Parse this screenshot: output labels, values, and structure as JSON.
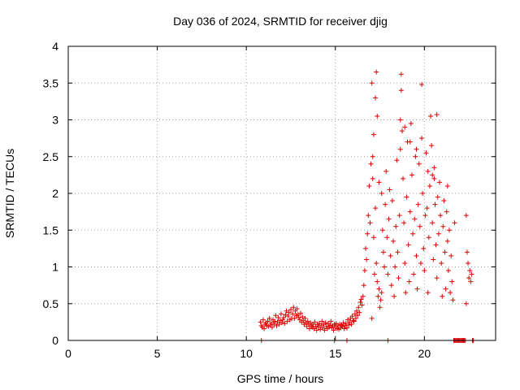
{
  "chart_data": {
    "type": "scatter",
    "title": "Day 036 of 2024, SRMTID for receiver djig",
    "xlabel": "GPS time / hours",
    "ylabel": "SRMTID / TECUs",
    "xlim": [
      0,
      24
    ],
    "ylim": [
      0,
      4
    ],
    "xticks": [
      0,
      5,
      10,
      15,
      20
    ],
    "yticks": [
      0,
      0.5,
      1,
      1.5,
      2,
      2.5,
      3,
      3.5,
      4
    ],
    "xtick_labels": [
      "0",
      "5",
      "10",
      "15",
      "20"
    ],
    "ytick_labels": [
      "0",
      "0.5",
      "1",
      "1.5",
      "2",
      "2.5",
      "3",
      "3.5",
      "4"
    ],
    "grid": true,
    "marker": "+",
    "color": "#dd0000",
    "series": [
      {
        "name": "SRMTID",
        "x": [
          10.8,
          10.85,
          10.9,
          10.95,
          11.0,
          11.05,
          11.1,
          11.15,
          11.2,
          11.25,
          11.3,
          11.35,
          11.4,
          11.45,
          11.5,
          11.55,
          11.6,
          11.65,
          11.7,
          11.75,
          11.8,
          11.85,
          11.9,
          11.95,
          12.0,
          12.05,
          12.1,
          12.15,
          12.2,
          12.25,
          12.3,
          12.35,
          12.4,
          12.45,
          12.5,
          12.55,
          12.6,
          12.65,
          12.7,
          12.75,
          12.8,
          12.85,
          12.9,
          12.95,
          13.0,
          13.05,
          13.1,
          13.15,
          13.2,
          13.25,
          13.3,
          13.35,
          13.4,
          13.45,
          13.5,
          13.55,
          13.6,
          13.65,
          13.7,
          13.75,
          13.8,
          13.85,
          13.9,
          13.95,
          14.0,
          14.05,
          14.1,
          14.15,
          14.2,
          14.25,
          14.3,
          14.35,
          14.4,
          14.45,
          14.5,
          14.55,
          14.6,
          14.65,
          14.7,
          14.75,
          14.8,
          14.85,
          14.9,
          14.95,
          15.0,
          15.05,
          15.1,
          15.15,
          15.2,
          15.25,
          15.3,
          15.35,
          15.4,
          15.45,
          15.5,
          15.55,
          15.6,
          15.65,
          15.7,
          15.75,
          15.8,
          15.85,
          15.9,
          15.95,
          16.0,
          16.05,
          16.1,
          16.15,
          16.2,
          16.25,
          16.3,
          16.35,
          16.4,
          16.45,
          16.5,
          16.55,
          16.6,
          16.65,
          16.7,
          16.75,
          16.8,
          16.85,
          16.9,
          16.95,
          17.0,
          17.05,
          17.1,
          17.15,
          17.2,
          17.25,
          17.3,
          17.35,
          17.4,
          17.45,
          17.5,
          17.55,
          17.6,
          17.65,
          17.7,
          17.75,
          17.8,
          17.85,
          17.9,
          17.95,
          18.0,
          18.05,
          18.1,
          18.15,
          18.2,
          18.25,
          18.3,
          18.35,
          18.4,
          18.45,
          18.5,
          18.55,
          18.6,
          18.65,
          18.7,
          18.75,
          18.8,
          18.85,
          18.9,
          18.95,
          19.0,
          19.05,
          19.1,
          19.15,
          19.2,
          19.25,
          19.3,
          19.35,
          19.4,
          19.45,
          19.5,
          19.55,
          19.6,
          19.65,
          19.7,
          19.75,
          19.8,
          19.85,
          19.9,
          19.95,
          20.0,
          20.05,
          20.1,
          20.15,
          20.2,
          20.25,
          20.3,
          20.35,
          20.4,
          20.45,
          20.5,
          20.55,
          20.6,
          20.65,
          20.7,
          20.75,
          20.8,
          20.85,
          20.9,
          20.95,
          21.0,
          21.05,
          21.1,
          21.15,
          21.2,
          21.25,
          21.3,
          21.35,
          21.4,
          21.45,
          21.5,
          21.55,
          21.6,
          21.65,
          21.7,
          21.75,
          21.8,
          21.85,
          21.9,
          21.95,
          22.0,
          22.05,
          22.1,
          22.15,
          22.2,
          22.25,
          22.3,
          22.35,
          22.4,
          22.45,
          22.5,
          22.55,
          22.6,
          22.65,
          22.7,
          22.75,
          17.3,
          18.7,
          19.85,
          20.2,
          20.7,
          17.25,
          17.15,
          17.1,
          17.45,
          17.35,
          17.6,
          18.65,
          18.9,
          19.2,
          19.55,
          20.45,
          20.55,
          21.3,
          21.7,
          22.35,
          17.05,
          10.85,
          14.95,
          15.65,
          17.95
        ],
        "y": [
          0.25,
          0.2,
          0.18,
          0.28,
          0.16,
          0.22,
          0.24,
          0.2,
          0.26,
          0.19,
          0.3,
          0.21,
          0.24,
          0.18,
          0.28,
          0.22,
          0.26,
          0.34,
          0.2,
          0.25,
          0.31,
          0.22,
          0.27,
          0.36,
          0.24,
          0.28,
          0.31,
          0.23,
          0.35,
          0.4,
          0.26,
          0.33,
          0.38,
          0.28,
          0.42,
          0.3,
          0.36,
          0.45,
          0.3,
          0.4,
          0.34,
          0.43,
          0.35,
          0.31,
          0.28,
          0.37,
          0.25,
          0.32,
          0.27,
          0.22,
          0.3,
          0.24,
          0.19,
          0.26,
          0.22,
          0.16,
          0.24,
          0.2,
          0.18,
          0.22,
          0.16,
          0.25,
          0.19,
          0.14,
          0.22,
          0.18,
          0.23,
          0.15,
          0.2,
          0.26,
          0.17,
          0.22,
          0.14,
          0.24,
          0.19,
          0.16,
          0.23,
          0.18,
          0.21,
          0.26,
          0.17,
          0.2,
          0.14,
          0.22,
          0.18,
          0.23,
          0.16,
          0.2,
          0.15,
          0.22,
          0.17,
          0.21,
          0.19,
          0.24,
          0.16,
          0.2,
          0.23,
          0.17,
          0.28,
          0.21,
          0.25,
          0.3,
          0.22,
          0.33,
          0.27,
          0.26,
          0.36,
          0.3,
          0.4,
          0.34,
          0.45,
          0.38,
          0.52,
          0.56,
          0.48,
          0.6,
          0.75,
          0.95,
          1.25,
          1.1,
          1.45,
          1.7,
          2.1,
          1.6,
          2.4,
          3.5,
          2.2,
          1.4,
          0.9,
          1.8,
          1.05,
          0.8,
          0.6,
          0.7,
          0.45,
          0.55,
          0.65,
          1.5,
          1.2,
          1.0,
          1.85,
          2.3,
          1.4,
          0.9,
          1.65,
          2.05,
          1.15,
          0.75,
          1.9,
          1.35,
          0.6,
          1.0,
          1.55,
          2.45,
          1.2,
          0.85,
          1.7,
          2.6,
          3.4,
          2.85,
          2.2,
          1.6,
          1.05,
          0.65,
          1.95,
          2.7,
          1.3,
          0.8,
          1.75,
          2.95,
          2.25,
          1.45,
          0.9,
          1.65,
          2.5,
          1.15,
          0.7,
          1.85,
          2.4,
          1.55,
          1.05,
          2.75,
          2.0,
          1.25,
          0.95,
          1.7,
          2.55,
          1.8,
          0.65,
          1.4,
          2.1,
          3.05,
          2.65,
          1.6,
          1.1,
          2.35,
          1.85,
          1.3,
          0.85,
          1.95,
          1.45,
          2.15,
          1.7,
          1.05,
          0.6,
          1.55,
          1.9,
          1.2,
          0.7,
          1.75,
          1.35,
          0.95,
          1.5,
          0.65,
          1.15,
          0.8,
          0.55,
          0.0,
          0.0,
          0.0,
          0.0,
          0.0,
          0.0,
          0.0,
          0.0,
          0.0,
          0.0,
          0.0,
          0.0,
          0.0,
          0.0,
          1.7,
          1.2,
          1.05,
          0.85,
          0.95,
          0.8,
          0.9,
          0.0,
          0.0,
          3.65,
          3.62,
          3.48,
          2.3,
          3.07,
          3.3,
          2.8,
          2.5,
          2.15,
          3.05,
          2.0,
          3.0,
          2.9,
          2.7,
          2.6,
          2.25,
          2.2,
          2.1,
          1.6,
          0.5,
          0.3,
          0.0,
          0.0,
          0.0,
          0.0
        ]
      }
    ]
  }
}
